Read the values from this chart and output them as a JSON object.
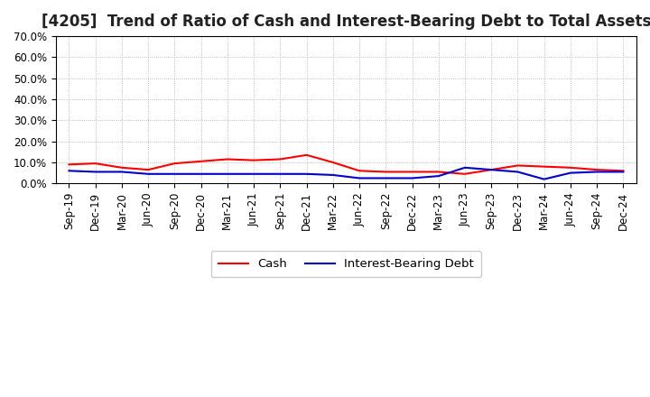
{
  "title": "[4205]  Trend of Ratio of Cash and Interest-Bearing Debt to Total Assets",
  "x_labels": [
    "Sep-19",
    "Dec-19",
    "Mar-20",
    "Jun-20",
    "Sep-20",
    "Dec-20",
    "Mar-21",
    "Jun-21",
    "Sep-21",
    "Dec-21",
    "Mar-22",
    "Jun-22",
    "Sep-22",
    "Dec-22",
    "Mar-23",
    "Jun-23",
    "Sep-23",
    "Dec-23",
    "Mar-24",
    "Jun-24",
    "Sep-24",
    "Dec-24"
  ],
  "cash": [
    9.0,
    9.5,
    7.5,
    6.5,
    9.5,
    10.5,
    11.5,
    11.0,
    11.5,
    13.5,
    10.0,
    6.0,
    5.5,
    5.5,
    5.5,
    4.5,
    6.5,
    8.5,
    8.0,
    7.5,
    6.5,
    6.0
  ],
  "ibd": [
    6.0,
    5.5,
    5.5,
    4.5,
    4.5,
    4.5,
    4.5,
    4.5,
    4.5,
    4.5,
    4.0,
    2.5,
    2.5,
    2.5,
    3.5,
    7.5,
    6.5,
    5.5,
    2.0,
    5.0,
    5.5,
    5.5
  ],
  "cash_color": "#FF0000",
  "ibd_color": "#0000CD",
  "ylim": [
    0,
    70
  ],
  "yticks": [
    0,
    10,
    20,
    30,
    40,
    50,
    60,
    70
  ],
  "ytick_labels": [
    "0.0%",
    "10.0%",
    "20.0%",
    "30.0%",
    "40.0%",
    "50.0%",
    "60.0%",
    "70.0%"
  ],
  "background_color": "#FFFFFF",
  "plot_bg_color": "#FFFFFF",
  "grid_color": "#AAAAAA",
  "legend_cash": "Cash",
  "legend_ibd": "Interest-Bearing Debt",
  "title_fontsize": 12,
  "axis_fontsize": 8.5,
  "legend_fontsize": 9.5,
  "line_width": 1.5
}
